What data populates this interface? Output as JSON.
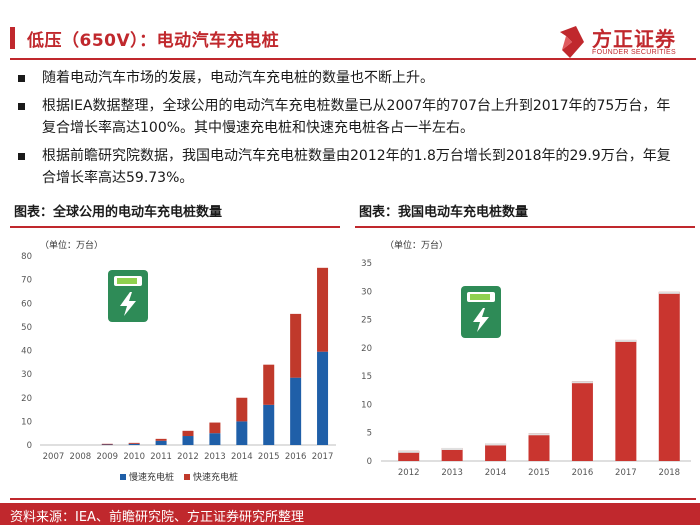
{
  "header": {
    "title": "低压（650V）：电动汽车充电桩",
    "logo_name": "方正证券",
    "logo_sub": "FOUNDER SECURITIES"
  },
  "bullets": [
    "随着电动汽车市场的发展，电动汽车充电桩的数量也不断上升。",
    "根据IEA数据整理，全球公用的电动汽车充电桩数量已从2007年的707台上升到2017年的75万台，年复合增长率高达100%。其中慢速充电桩和快速充电桩各占一半左右。",
    "根据前瞻研究院数据，我国电动汽车充电桩数量由2012年的1.8万台增长到2018年的29.9万台，年复合增长率高达59.73%。"
  ],
  "chart_left_title": "图表：全球公用的电动车充电桩数量",
  "chart_right_title": "图表：我国电动车充电桩数量",
  "footer": {
    "source": "资料来源：IEA、前瞻研究院、方正证券研究所整理"
  },
  "colors": {
    "brand_red": "#c0282d",
    "slow_blue": "#1f5fa8",
    "fast_red": "#c0392b",
    "bar_red": "#c9352f",
    "icon_green": "#2e8b57"
  },
  "icons": [
    "ev-charger-icon"
  ],
  "chart_data": [
    {
      "type": "bar",
      "stacked": true,
      "title": "图表：全球公用的电动车充电桩数量",
      "unit_label": "（单位：万台）",
      "categories": [
        "2007",
        "2008",
        "2009",
        "2010",
        "2011",
        "2012",
        "2013",
        "2014",
        "2015",
        "2016",
        "2017"
      ],
      "series": [
        {
          "name": "慢速充电桩",
          "color": "#1f5fa8",
          "values": [
            0.0,
            0.0,
            0.2,
            0.5,
            1.8,
            3.8,
            5.0,
            10.0,
            17.0,
            28.5,
            39.5
          ]
        },
        {
          "name": "快速充电桩",
          "color": "#c0392b",
          "values": [
            0.0,
            0.0,
            0.3,
            0.4,
            0.8,
            2.2,
            4.5,
            10.0,
            17.0,
            27.0,
            35.5
          ]
        }
      ],
      "ylim": [
        0,
        80
      ],
      "yticks": [
        0,
        10,
        20,
        30,
        40,
        50,
        60,
        70,
        80
      ],
      "grid": false,
      "legend": "bottom"
    },
    {
      "type": "bar",
      "title": "图表：我国电动车充电桩数量",
      "unit_label": "（单位：万台）",
      "categories": [
        "2012",
        "2013",
        "2014",
        "2015",
        "2016",
        "2017",
        "2018"
      ],
      "values": [
        1.8,
        2.3,
        3.1,
        4.9,
        14.1,
        21.4,
        29.9
      ],
      "ylim": [
        0,
        35
      ],
      "yticks": [
        0,
        5,
        10,
        15,
        20,
        25,
        30,
        35
      ],
      "grid": false
    }
  ]
}
